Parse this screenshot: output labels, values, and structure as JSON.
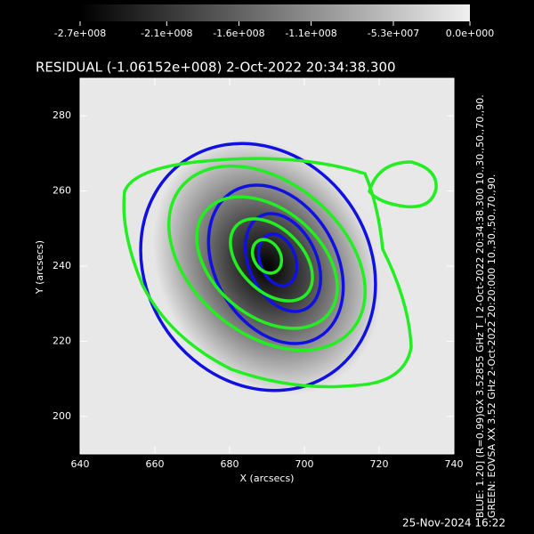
{
  "chart_data": {
    "type": "image",
    "title": "RESIDUAL (-1.06152e+008)  2-Oct-2022 20:34:38.300",
    "xlabel": "X (arcsecs)",
    "ylabel": "Y (arcsecs)",
    "xlim": [
      640,
      740
    ],
    "ylim": [
      190,
      290
    ],
    "xticks": [
      640,
      660,
      680,
      700,
      720,
      740
    ],
    "yticks": [
      200,
      220,
      240,
      260,
      280
    ],
    "colorbar": {
      "lim": [
        -270000000,
        0
      ],
      "ticks": [
        {
          "value": -270000000,
          "label": "-2.7e+008"
        },
        {
          "value": -210000000,
          "label": "-2.1e+008"
        },
        {
          "value": -160000000,
          "label": "-1.6e+008"
        },
        {
          "value": -110000000,
          "label": "-1.1e+008"
        },
        {
          "value": -53000000,
          "label": "-5.3e+007"
        },
        {
          "value": 0,
          "label": "0.0e+000"
        }
      ]
    },
    "annotations": [
      "BLUE:   1.20] (R=0.99)GX 3.52855 GHz T_I 2-Oct-2022 20:34:38.300 10.,30.,50.,70.,90.",
      "GREEN: EOVSA XX 3.52 GHz 2-Oct-2022 20:20:000 10.,30.,50.,70.,90."
    ],
    "timestamp": "25-Nov-2024 16:22"
  }
}
